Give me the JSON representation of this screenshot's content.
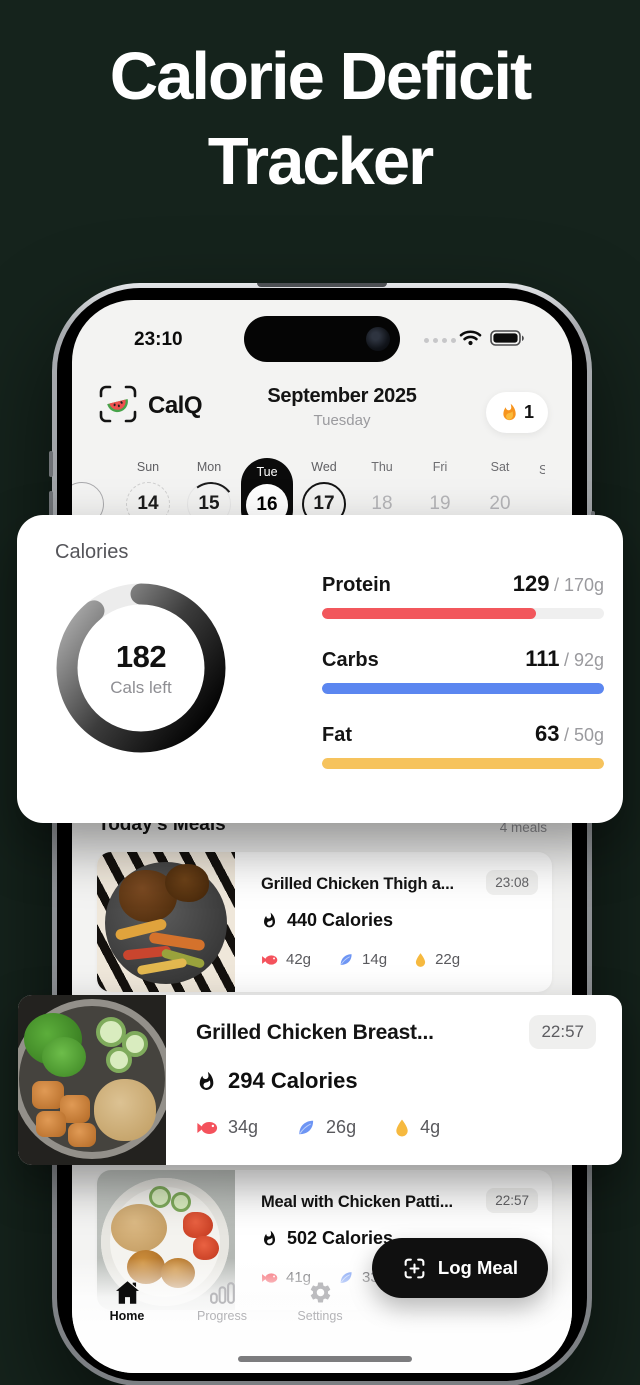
{
  "poster": {
    "title_line1": "Calorie Deficit",
    "title_line2": "Tracker"
  },
  "status_bar": {
    "time": "23:10"
  },
  "header": {
    "app_name": "CalQ",
    "month": "September 2025",
    "weekday": "Tuesday",
    "streak_count": "1"
  },
  "calendar": {
    "days": [
      {
        "label": "Sun",
        "date": "14"
      },
      {
        "label": "Mon",
        "date": "15"
      },
      {
        "label": "Tue",
        "date": "16"
      },
      {
        "label": "Wed",
        "date": "17"
      },
      {
        "label": "Thu",
        "date": "18"
      },
      {
        "label": "Fri",
        "date": "19"
      },
      {
        "label": "Sat",
        "date": "20"
      }
    ],
    "next_partial": "S"
  },
  "calories_card": {
    "title": "Calories",
    "remaining": "182",
    "remaining_label": "Cals left",
    "ring_percent": 89,
    "macros": [
      {
        "name": "Protein",
        "current": "129",
        "target": "/ 170g",
        "percent": 76,
        "color": "#F2575C"
      },
      {
        "name": "Carbs",
        "current": "111",
        "target": "/ 92g",
        "percent": 100,
        "color": "#5B86F0"
      },
      {
        "name": "Fat",
        "current": "63",
        "target": "/ 50g",
        "percent": 100,
        "color": "#F6C35D"
      }
    ]
  },
  "meals_section": {
    "title": "Today's Meals",
    "count": "4 meals"
  },
  "meals": [
    {
      "name": "Grilled Chicken Thigh a...",
      "time": "23:08",
      "calories": "440 Calories",
      "protein": "42g",
      "carbs": "14g",
      "fat": "22g"
    },
    {
      "name": "Grilled Chicken Breast...",
      "time": "22:57",
      "calories": "294 Calories",
      "protein": "34g",
      "carbs": "26g",
      "fat": "4g"
    },
    {
      "name": "Meal with Chicken Patti...",
      "time": "22:57",
      "calories": "502 Calories",
      "protein": "41g",
      "carbs": "33g"
    }
  ],
  "nav": {
    "home": "Home",
    "progress": "Progress",
    "settings": "Settings",
    "log_button": "Log Meal"
  },
  "colors": {
    "background": "#15231C",
    "protein": "#F2575C",
    "carbs": "#5B86F0",
    "fat": "#F6C35D",
    "protein_icon": "#F4525C",
    "carbs_icon": "#6D95F4",
    "fat_icon": "#F6B93F",
    "streak_flame": "#F7941D"
  }
}
